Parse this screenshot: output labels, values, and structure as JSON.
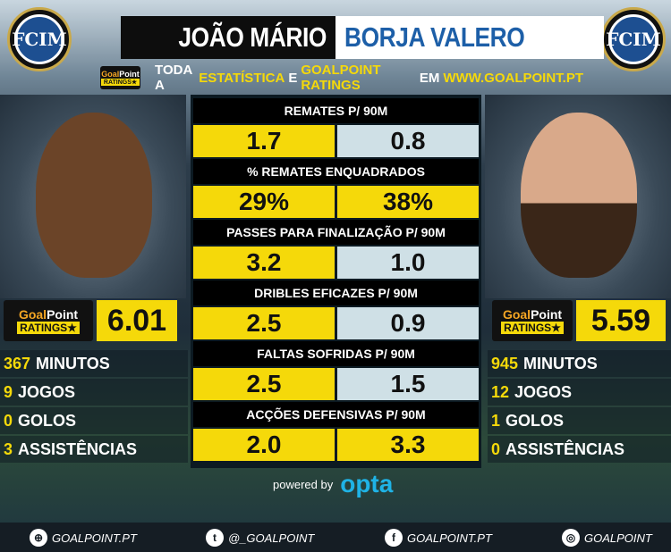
{
  "header": {
    "player_left": "JOÃO MÁRIO",
    "player_right": "BORJA VALERO",
    "tagline": [
      "TODA A",
      "ESTATÍSTICA",
      "E",
      "GOALPOINT RATINGS",
      "EM",
      "WWW.GOALPOINT.PT"
    ],
    "club_logo": "inter-crest",
    "logo_letters": "FCIM"
  },
  "badge": {
    "brand_a": "Goal",
    "brand_b": "Point",
    "ratings": "RATINGS★"
  },
  "stats": [
    {
      "label": "REMATES P/ 90M",
      "left": "1.7",
      "right": "0.8",
      "left_hl": true,
      "right_hl": false
    },
    {
      "label": "% REMATES ENQUADRADOS",
      "left": "29%",
      "right": "38%",
      "left_hl": true,
      "right_hl": true
    },
    {
      "label": "PASSES PARA FINALIZAÇÃO P/ 90M",
      "left": "3.2",
      "right": "1.0",
      "left_hl": true,
      "right_hl": false
    },
    {
      "label": "DRIBLES EFICAZES P/ 90M",
      "left": "2.5",
      "right": "0.9",
      "left_hl": true,
      "right_hl": false
    },
    {
      "label": "FALTAS SOFRIDAS P/ 90M",
      "left": "2.5",
      "right": "1.5",
      "left_hl": true,
      "right_hl": false
    },
    {
      "label": "ACÇÕES DEFENSIVAS P/ 90M",
      "left": "2.0",
      "right": "3.3",
      "left_hl": true,
      "right_hl": true
    }
  ],
  "left": {
    "rating": "6.01",
    "lines": [
      {
        "n": "367",
        "t": "MINUTOS"
      },
      {
        "n": "9",
        "t": "JOGOS"
      },
      {
        "n": "0",
        "t": "GOLOS"
      },
      {
        "n": "3",
        "t": "ASSISTÊNCIAS"
      }
    ]
  },
  "right": {
    "rating": "5.59",
    "lines": [
      {
        "n": "945",
        "t": "MINUTOS"
      },
      {
        "n": "12",
        "t": "JOGOS"
      },
      {
        "n": "1",
        "t": "GOLOS"
      },
      {
        "n": "0",
        "t": "ASSISTÊNCIAS"
      }
    ]
  },
  "powered": {
    "text": "powered by",
    "brand": "opta"
  },
  "footer": [
    {
      "icon": "globe-icon",
      "glyph": "⊕",
      "text": "GOALPOINT.PT"
    },
    {
      "icon": "twitter-icon",
      "glyph": "t",
      "text": "@_GOALPOINT"
    },
    {
      "icon": "facebook-icon",
      "glyph": "f",
      "text": "GOALPOINT.PT"
    },
    {
      "icon": "instagram-icon",
      "glyph": "◎",
      "text": "GOALPOINT"
    }
  ],
  "colors": {
    "highlight": "#f5d90a",
    "low": "#cfe0e6",
    "right_name": "#1d5fa8",
    "opta": "#1fb3e6"
  }
}
